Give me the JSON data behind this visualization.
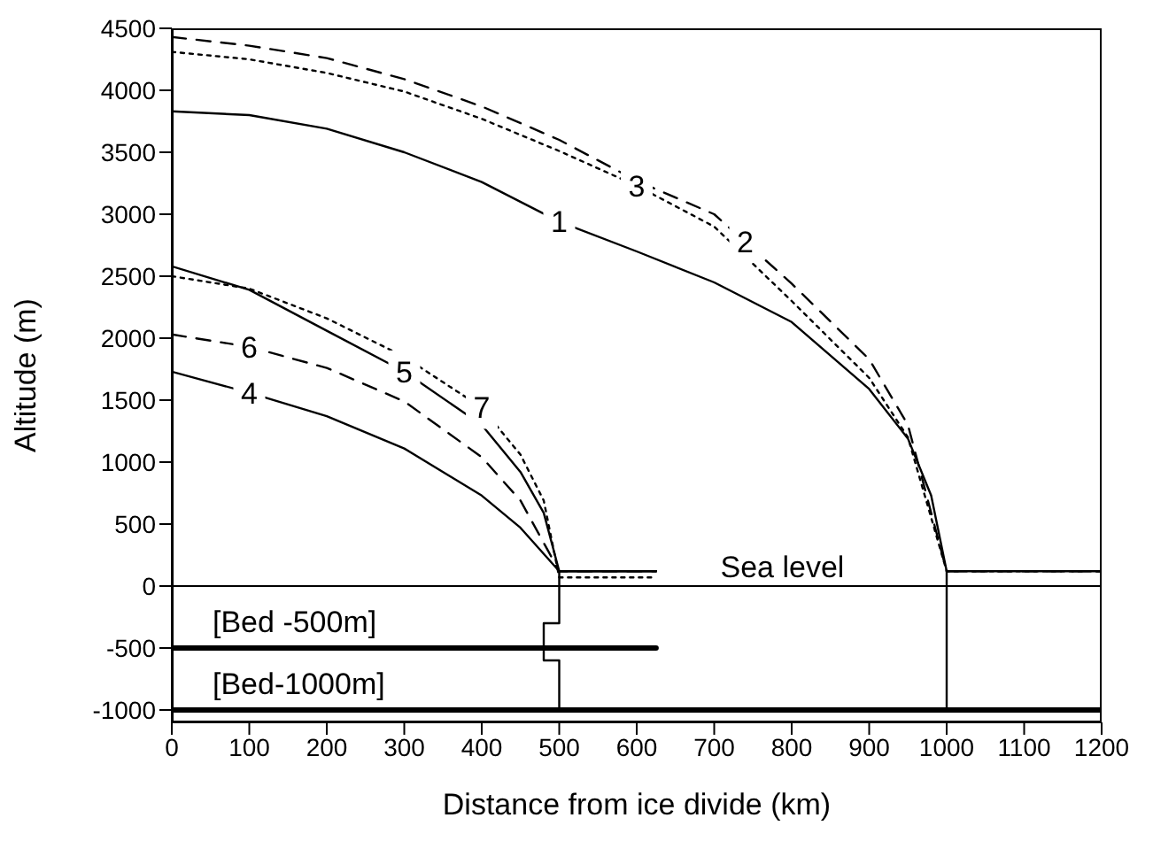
{
  "chart_data": {
    "type": "line",
    "xlabel": "Distance from ice divide (km)",
    "ylabel": "Altitude (m)",
    "xlim": [
      0,
      1200
    ],
    "xticks": [
      0,
      100,
      200,
      300,
      400,
      500,
      600,
      700,
      800,
      900,
      1000,
      1100,
      1200
    ],
    "ylim": [
      -1100,
      4500
    ],
    "yticks": [
      -1000,
      -500,
      0,
      500,
      1000,
      1500,
      2000,
      2500,
      3000,
      3500,
      4000,
      4500
    ],
    "grid": false,
    "legend": false,
    "marker": "none",
    "series": [
      {
        "color": "#000000",
        "line_style": "solid",
        "x": [
          0,
          100,
          200,
          300,
          400,
          500,
          600,
          700,
          800,
          900,
          950,
          980,
          1000,
          1200
        ],
        "values": [
          3830,
          3800,
          3690,
          3500,
          3260,
          2940,
          2700,
          2450,
          2130,
          1590,
          1190,
          730,
          120,
          120
        ]
      },
      {
        "color": "#000000",
        "line_style": "dashed",
        "x": [
          0,
          100,
          200,
          300,
          400,
          500,
          600,
          700,
          800,
          900,
          950,
          1000,
          1200
        ],
        "values": [
          4430,
          4360,
          4260,
          4090,
          3870,
          3600,
          3270,
          3000,
          2440,
          1830,
          1300,
          120,
          120
        ]
      },
      {
        "color": "#000000",
        "line_style": "dotted",
        "x": [
          0,
          100,
          200,
          300,
          400,
          500,
          600,
          700,
          800,
          900,
          950,
          1000,
          1200
        ],
        "values": [
          4310,
          4250,
          4140,
          3990,
          3770,
          3510,
          3230,
          2900,
          2300,
          1680,
          1200,
          120,
          120
        ]
      },
      {
        "color": "#000000",
        "line_style": "solid",
        "x": [
          0,
          100,
          200,
          300,
          400,
          450,
          500,
          625
        ],
        "values": [
          1730,
          1560,
          1370,
          1110,
          730,
          470,
          120,
          120
        ]
      },
      {
        "color": "#000000",
        "line_style": "solid",
        "x": [
          0,
          100,
          200,
          300,
          400,
          450,
          480,
          500,
          625
        ],
        "values": [
          2580,
          2390,
          2060,
          1730,
          1300,
          920,
          590,
          120,
          120
        ]
      },
      {
        "color": "#000000",
        "line_style": "dashed",
        "x": [
          0,
          100,
          200,
          300,
          400,
          450,
          500,
          625
        ],
        "values": [
          2030,
          1930,
          1760,
          1490,
          1040,
          690,
          120,
          120
        ]
      },
      {
        "color": "#000000",
        "line_style": "dotted",
        "x": [
          0,
          100,
          200,
          300,
          400,
          450,
          480,
          500,
          625
        ],
        "values": [
          2500,
          2400,
          2160,
          1850,
          1440,
          1060,
          690,
          70,
          70
        ]
      },
      {
        "color": "#000000",
        "line_style": "solid",
        "x": [
          500,
          500,
          480,
          480,
          500,
          500
        ],
        "values": [
          120,
          -300,
          -300,
          -600,
          -600,
          -1000
        ]
      },
      {
        "color": "#000000",
        "line_style": "solid",
        "x": [
          1000,
          1000
        ],
        "values": [
          120,
          -1000
        ]
      },
      {
        "name": "[Bed -500m]",
        "color": "#000000",
        "line_style": "solid",
        "x": [
          0,
          625
        ],
        "values": [
          -500,
          -500
        ]
      },
      {
        "name": "[Bed-1000m]",
        "color": "#000000",
        "line_style": "solid",
        "x": [
          0,
          1200
        ],
        "values": [
          -1000,
          -1000
        ]
      }
    ],
    "ref_lines": [
      {
        "axis": "y",
        "value": 0,
        "label": "Sea level",
        "color": "#000000"
      }
    ],
    "annotations": [
      {
        "text": "1",
        "x": 500,
        "y": 2940
      },
      {
        "text": "2",
        "x": 740,
        "y": 2780
      },
      {
        "text": "3",
        "x": 600,
        "y": 3230
      },
      {
        "text": "4",
        "x": 100,
        "y": 1560
      },
      {
        "text": "5",
        "x": 300,
        "y": 1730
      },
      {
        "text": "6",
        "x": 100,
        "y": 1930
      },
      {
        "text": "7",
        "x": 400,
        "y": 1440
      }
    ]
  }
}
